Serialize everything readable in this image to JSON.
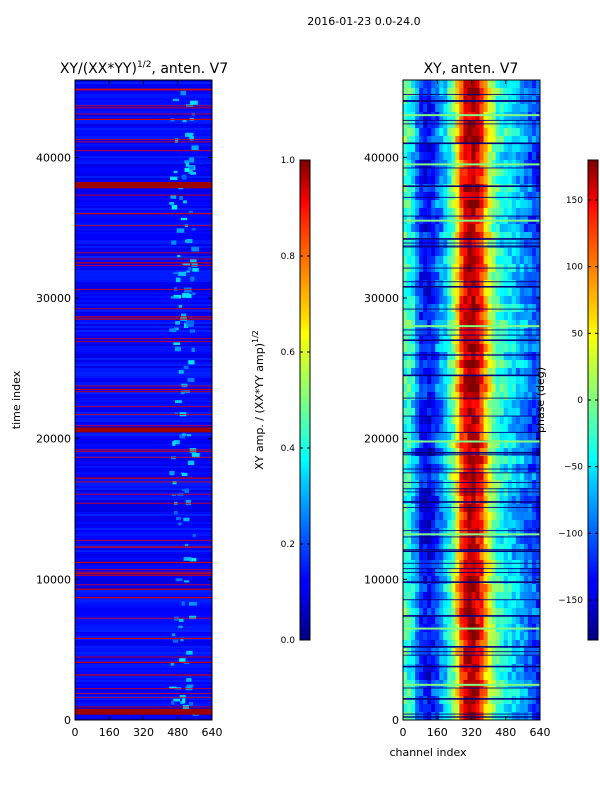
{
  "suptitle": "2016-01-23 0.0-24.0",
  "chart_data": [
    {
      "type": "heatmap",
      "title_main": "XY/(XX*YY)",
      "title_exp": "1/2",
      "title_tail": ", anten. V7",
      "xlabel": "",
      "ylabel": "time index",
      "xlim": [
        0,
        640
      ],
      "ylim": [
        0,
        45500
      ],
      "x_ticks": [
        0,
        160,
        320,
        480,
        640
      ],
      "y_ticks": [
        0,
        10000,
        20000,
        30000,
        40000
      ],
      "colormap": "jet",
      "colorbar": {
        "label_main": "XY amp. / (XX*YY amp)",
        "label_exp": "1/2",
        "range": [
          0.0,
          1.0
        ],
        "ticks": [
          "0.0",
          "0.2",
          "0.4",
          "0.6",
          "0.8",
          "1.0"
        ],
        "tick_values": [
          0.0,
          0.2,
          0.4,
          0.6,
          0.8,
          1.0
        ]
      },
      "background_value": 0.12,
      "high_bands_time_index": [
        600,
        3200,
        4100,
        5800,
        8700,
        9300,
        10400,
        11200,
        12300,
        17200,
        20600,
        23500,
        28500,
        32500,
        36000,
        38000,
        42700,
        44800
      ],
      "thick_bands": [
        [
          380,
          800
        ],
        [
          20450,
          20800
        ],
        [
          37800,
          38250
        ]
      ]
    },
    {
      "type": "heatmap",
      "title": "XY, anten. V7",
      "xlabel": "channel index",
      "ylabel": "",
      "xlim": [
        0,
        640
      ],
      "ylim": [
        0,
        45500
      ],
      "x_ticks": [
        0,
        160,
        320,
        480,
        640
      ],
      "y_ticks": [
        0,
        10000,
        20000,
        30000,
        40000
      ],
      "colormap": "jet",
      "colorbar": {
        "label": "phase (deg)",
        "range": [
          -180,
          180
        ],
        "ticks": [
          "150",
          "100",
          "50",
          "0",
          "−50",
          "−100",
          "−150"
        ],
        "tick_values": [
          150,
          100,
          50,
          0,
          -50,
          -100,
          -150
        ]
      },
      "phase_profile_deg": [
        [
          0,
          -15
        ],
        [
          40,
          -35
        ],
        [
          80,
          -120
        ],
        [
          120,
          -140
        ],
        [
          160,
          -100
        ],
        [
          200,
          -60
        ],
        [
          240,
          10
        ],
        [
          280,
          130
        ],
        [
          320,
          175
        ],
        [
          360,
          135
        ],
        [
          400,
          40
        ],
        [
          440,
          -20
        ],
        [
          480,
          -45
        ],
        [
          520,
          -60
        ],
        [
          560,
          -80
        ],
        [
          600,
          -100
        ],
        [
          640,
          -120
        ]
      ],
      "dark_lines_time_index": [
        1500,
        3800,
        5200,
        7400,
        9800,
        12000,
        15500,
        19000,
        24500,
        27000,
        30800,
        34200,
        37950,
        41000,
        44000
      ],
      "light_lines_time_index": [
        2500,
        6500,
        13200,
        19800,
        28000,
        35500,
        39500,
        43000
      ]
    }
  ]
}
